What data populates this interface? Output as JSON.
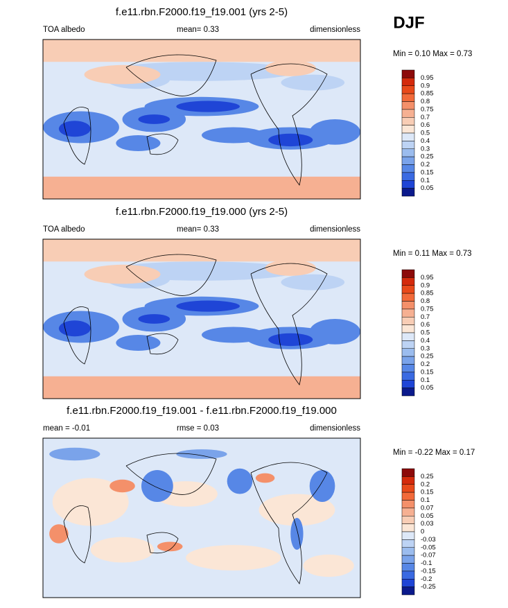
{
  "season": "DJF",
  "panels": [
    {
      "title": "f.e11.rbn.F2000.f19_f19.001 (yrs 2-5)",
      "left": "TOA albedo",
      "center": "mean=  0.33",
      "right": "dimensionless",
      "min_max": "Min =  0.10 Max =  0.73",
      "colorbar": {
        "labels": [
          "0.95",
          "0.9",
          "0.85",
          "0.8",
          "0.75",
          "0.7",
          "0.6",
          "0.5",
          "0.4",
          "0.3",
          "0.25",
          "0.2",
          "0.15",
          "0.1",
          "0.05"
        ],
        "colors": [
          "#8c0a0a",
          "#d42a0c",
          "#e8491a",
          "#f26a3a",
          "#f4906a",
          "#f6b092",
          "#f8cdb5",
          "#fbe6d6",
          "#dde8f8",
          "#bdd3f4",
          "#9bbcee",
          "#7aa3ea",
          "#5787e6",
          "#3a6ae2",
          "#1f45d6",
          "#0b1a8c"
        ]
      }
    },
    {
      "title": "f.e11.rbn.F2000.f19_f19.000 (yrs 2-5)",
      "left": "TOA albedo",
      "center": "mean=  0.33",
      "right": "dimensionless",
      "min_max": "Min =  0.11 Max =  0.73",
      "colorbar": {
        "labels": [
          "0.95",
          "0.9",
          "0.85",
          "0.8",
          "0.75",
          "0.7",
          "0.6",
          "0.5",
          "0.4",
          "0.3",
          "0.25",
          "0.2",
          "0.15",
          "0.1",
          "0.05"
        ],
        "colors": [
          "#8c0a0a",
          "#d42a0c",
          "#e8491a",
          "#f26a3a",
          "#f4906a",
          "#f6b092",
          "#f8cdb5",
          "#fbe6d6",
          "#dde8f8",
          "#bdd3f4",
          "#9bbcee",
          "#7aa3ea",
          "#5787e6",
          "#3a6ae2",
          "#1f45d6",
          "#0b1a8c"
        ]
      }
    },
    {
      "title": "f.e11.rbn.F2000.f19_f19.001 - f.e11.rbn.F2000.f19_f19.000",
      "left": "mean =  -0.01",
      "center": "rmse =  0.03",
      "right": "dimensionless",
      "min_max": "Min =  -0.22 Max =  0.17",
      "colorbar": {
        "labels": [
          "0.25",
          "0.2",
          "0.15",
          "0.1",
          "0.07",
          "0.05",
          "0.03",
          "0",
          "-0.03",
          "-0.05",
          "-0.07",
          "-0.1",
          "-0.15",
          "-0.2",
          "-0.25"
        ],
        "colors": [
          "#8c0a0a",
          "#d42a0c",
          "#e8491a",
          "#f26a3a",
          "#f4906a",
          "#f6b092",
          "#f8cdb5",
          "#fbe6d6",
          "#dde8f8",
          "#bdd3f4",
          "#9bbcee",
          "#7aa3ea",
          "#5787e6",
          "#3a6ae2",
          "#1f45d6",
          "#0b1a8c"
        ]
      }
    }
  ]
}
